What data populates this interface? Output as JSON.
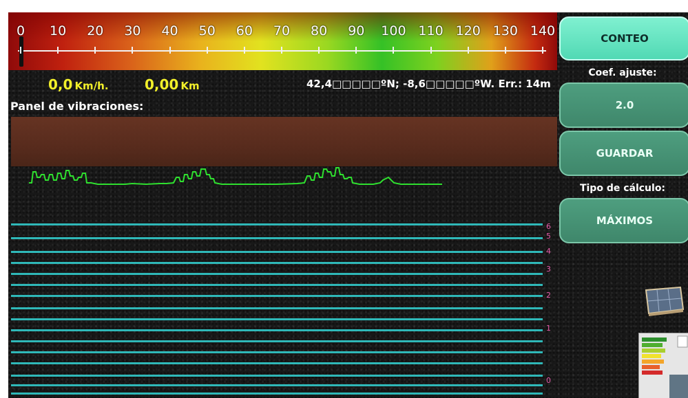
{
  "speed_scale": {
    "ticks": [
      "0",
      "10",
      "20",
      "30",
      "40",
      "50",
      "60",
      "70",
      "80",
      "90",
      "100",
      "110",
      "120",
      "130",
      "140"
    ],
    "current_speed_kmh": 0
  },
  "readouts": {
    "speed_value": "0,0",
    "speed_unit": "Km/h.",
    "distance_value": "0,00",
    "distance_unit": "Km",
    "gps": "42,4□□□□□ºN; -8,6□□□□□ºW. Err.: 14m"
  },
  "panel": {
    "title": "Panel de vibraciones:"
  },
  "vibration_levels": [
    "6",
    "5",
    "4",
    "3",
    "2",
    "1",
    "0"
  ],
  "sidebar": {
    "count_button": "CONTEO",
    "coef_label": "Coef. ajuste:",
    "coef_value": "2.0",
    "save_button": "GUARDAR",
    "calc_label": "Tipo de cálculo:",
    "calc_button": "MÁXIMOS"
  },
  "colors": {
    "accent_primary": "#51d9b4",
    "button_secondary": "#3f876b",
    "readout_yellow": "#f2f02a",
    "level_line": "#2fb8b8",
    "level_label": "#e35aa8",
    "waveform": "#2fe02f"
  }
}
